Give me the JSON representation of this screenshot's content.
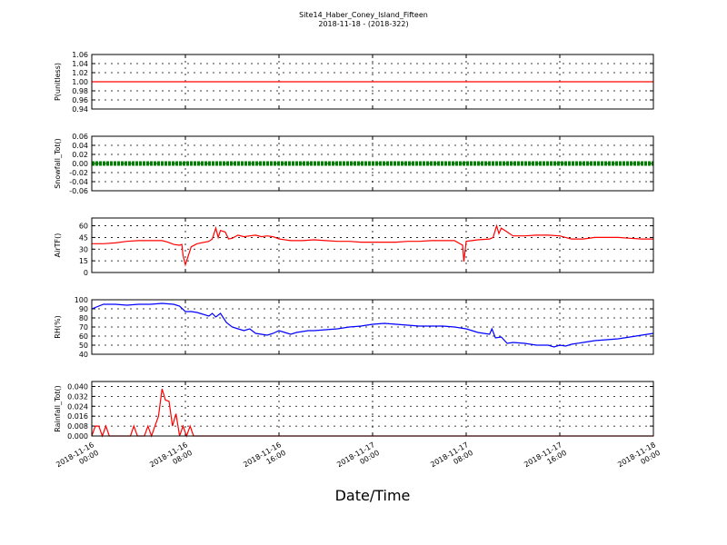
{
  "figure": {
    "title_line1": "Site14_Haber_Coney_Island_Fifteen",
    "title_line2": "2018-11-18 - (2018-322)",
    "xlabel": "Date/Time",
    "x_ticks": [
      {
        "l1": "2018-11-16",
        "l2": "00:00"
      },
      {
        "l1": "2018-11-16",
        "l2": "08:00"
      },
      {
        "l1": "2018-11-16",
        "l2": "16:00"
      },
      {
        "l1": "2018-11-17",
        "l2": "00:00"
      },
      {
        "l1": "2018-11-17",
        "l2": "08:00"
      },
      {
        "l1": "2018-11-17",
        "l2": "16:00"
      },
      {
        "l1": "2018-11-18",
        "l2": "00:00"
      }
    ]
  },
  "chart_data": [
    {
      "type": "line",
      "ylabel": "P(unitless)",
      "ylim": [
        0.94,
        1.06
      ],
      "yticks": [
        "0.94",
        "0.96",
        "0.98",
        "1.00",
        "1.02",
        "1.04",
        "1.06"
      ],
      "grid": true,
      "series": [
        {
          "color": "#ff0000",
          "x": [
            0,
            48
          ],
          "values": [
            1.0,
            1.0
          ]
        }
      ]
    },
    {
      "type": "line",
      "ylabel": "Snowfall_Tot()",
      "ylim": [
        -0.06,
        0.06
      ],
      "yticks": [
        "-0.06",
        "-0.04",
        "-0.02",
        "0.00",
        "0.02",
        "0.04",
        "0.06"
      ],
      "grid": true,
      "series": [
        {
          "color": "#008000",
          "style": "markers",
          "x": [
            0,
            48
          ],
          "values": [
            0.0,
            0.0
          ]
        }
      ]
    },
    {
      "type": "line",
      "ylabel": "AirTF()",
      "ylim": [
        0,
        70
      ],
      "yticks": [
        "0",
        "15",
        "30",
        "45",
        "60"
      ],
      "grid": true,
      "series": [
        {
          "color": "#ff0000",
          "x": [
            0,
            1,
            2,
            3,
            4,
            5,
            5.5,
            6,
            6.5,
            7,
            7.5,
            7.7,
            7.8,
            8,
            8.5,
            9,
            10,
            10.3,
            10.6,
            10.8,
            11,
            11.4,
            11.7,
            12,
            12.5,
            13,
            13.5,
            14,
            14.5,
            15,
            15.5,
            16,
            17,
            18,
            19,
            20,
            21,
            22,
            23,
            24,
            25,
            26,
            27,
            28,
            29,
            30,
            31,
            31.7,
            31.8,
            32,
            32.5,
            33,
            34,
            34.3,
            34.6,
            34.8,
            35,
            35.5,
            36,
            37,
            38,
            39,
            40,
            40.5,
            41,
            42,
            43,
            44,
            45,
            46,
            47,
            48
          ],
          "values": [
            37,
            37,
            38,
            40,
            41,
            41,
            41,
            41,
            39,
            36,
            35,
            36,
            22,
            10,
            33,
            37,
            40,
            43,
            57,
            45,
            54,
            52,
            43,
            44,
            48,
            46,
            47,
            48,
            46,
            47,
            46,
            43,
            41,
            41,
            42,
            41,
            40,
            40,
            39,
            39,
            39,
            39,
            40,
            40,
            41,
            41,
            41,
            35,
            14,
            40,
            41,
            42,
            43,
            45,
            60,
            50,
            57,
            52,
            47,
            47,
            48,
            48,
            47,
            45,
            43,
            43,
            45,
            45,
            45,
            44,
            43,
            43
          ]
        }
      ]
    },
    {
      "type": "line",
      "ylabel": "RH(%)",
      "ylim": [
        40,
        100
      ],
      "yticks": [
        "40",
        "50",
        "60",
        "70",
        "80",
        "90",
        "100"
      ],
      "grid": true,
      "series": [
        {
          "color": "#0000ff",
          "x": [
            0,
            1,
            2,
            3,
            4,
            5,
            6,
            7,
            7.5,
            8,
            8.5,
            9,
            10,
            10.3,
            10.6,
            11,
            11.5,
            12,
            12.5,
            13,
            13.5,
            14,
            14.5,
            15,
            15.5,
            16,
            16.5,
            17,
            17.5,
            18,
            18.5,
            19,
            20,
            21,
            22,
            23,
            24,
            25,
            26,
            27,
            28,
            29,
            30,
            31,
            32,
            33,
            33.5,
            34,
            34.2,
            34.5,
            35,
            35.5,
            36,
            37,
            38,
            39,
            39.5,
            40,
            40.5,
            41,
            42,
            43,
            44,
            45,
            46,
            47,
            48
          ],
          "values": [
            90,
            95,
            95,
            94,
            95,
            95,
            96,
            95,
            93,
            87,
            87,
            86,
            82,
            85,
            81,
            85,
            75,
            70,
            68,
            66,
            68,
            63,
            62,
            61,
            63,
            66,
            64,
            62,
            64,
            65,
            66,
            66,
            67,
            68,
            70,
            71,
            73,
            74,
            73,
            72,
            71,
            71,
            71,
            70,
            68,
            64,
            63,
            62,
            68,
            58,
            59,
            52,
            53,
            52,
            50,
            50,
            48,
            50,
            49,
            51,
            53,
            55,
            56,
            57,
            59,
            61,
            63
          ]
        }
      ]
    },
    {
      "type": "line",
      "ylabel": "Rainfall_Tot()",
      "ylim": [
        0,
        0.044
      ],
      "yticks": [
        "0.000",
        "0.008",
        "0.016",
        "0.024",
        "0.032",
        "0.040"
      ],
      "grid": true,
      "series": [
        {
          "color": "#ff0000",
          "x": [
            0,
            0.3,
            0.6,
            0.9,
            1.2,
            1.5,
            1.8,
            2.1,
            2.4,
            2.7,
            3.0,
            3.3,
            3.6,
            3.9,
            4.2,
            4.5,
            4.8,
            5.1,
            5.4,
            5.7,
            6.0,
            6.3,
            6.6,
            6.9,
            7.2,
            7.5,
            7.8,
            8.1,
            8.4,
            8.7,
            9.0,
            48
          ],
          "values": [
            0,
            0.008,
            0.008,
            0,
            0.008,
            0,
            0,
            0,
            0,
            0,
            0,
            0,
            0.008,
            0,
            0,
            0,
            0.008,
            0,
            0.008,
            0.016,
            0.038,
            0.029,
            0.028,
            0.008,
            0.018,
            0,
            0.008,
            0,
            0.008,
            0,
            0,
            0
          ]
        }
      ]
    }
  ]
}
